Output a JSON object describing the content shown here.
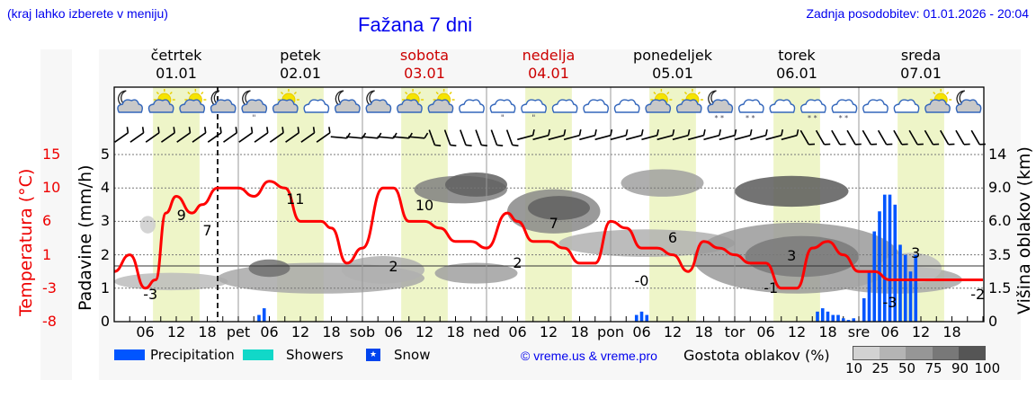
{
  "header": {
    "location_hint": "(kraj lahko izberete v meniju)",
    "title": "Fažana 7 dni",
    "last_update": "Zadnja posodobitev: 01.01.2026 - 20:04"
  },
  "days": [
    {
      "name": "četrtek",
      "date": "01.01",
      "weekend": false
    },
    {
      "name": "petek",
      "date": "02.01",
      "weekend": false
    },
    {
      "name": "sobota",
      "date": "03.01",
      "weekend": true
    },
    {
      "name": "nedelja",
      "date": "04.01",
      "weekend": true
    },
    {
      "name": "ponedeljek",
      "date": "05.01",
      "weekend": false
    },
    {
      "name": "torek",
      "date": "06.01",
      "weekend": false
    },
    {
      "name": "sreda",
      "date": "07.01",
      "weekend": false
    }
  ],
  "x_ticks": [
    "06",
    "12",
    "18",
    "pet",
    "06",
    "12",
    "18",
    "sob",
    "06",
    "12",
    "18",
    "ned",
    "06",
    "12",
    "18",
    "pon",
    "06",
    "12",
    "18",
    "tor",
    "06",
    "12",
    "18",
    "sre",
    "06",
    "12",
    "18"
  ],
  "axes": {
    "left_label": "Padavine (mm/h)",
    "left_ticks": [
      "5",
      "4",
      "3",
      "2",
      "1",
      "0"
    ],
    "temp_label": "Temperatura (°C)",
    "temp_ticks": [
      "15",
      "10",
      "6",
      "1",
      "-3",
      "-8"
    ],
    "right_label": "Višina oblakov (km)",
    "right_ticks": [
      "14",
      "9.0",
      "6.0",
      "3.5",
      "1.5",
      "0"
    ]
  },
  "weather_icons": [
    "moon-cloud",
    "sun-cloud",
    "sun-cloud",
    "moon-cloud",
    "moon-cloud-drizzle",
    "sun-cloud",
    "cloud",
    "moon-cloud",
    "moon-cloud",
    "sun-cloud",
    "sun-cloud",
    "cloud",
    "cloud-drizzle",
    "cloud-drizzle",
    "cloud",
    "cloud",
    "cloud",
    "sun-cloud",
    "sun-cloud",
    "moon-cloud-snow",
    "cloud-sleet",
    "cloud",
    "cloud-sleet",
    "cloud-snow",
    "cloud",
    "cloud",
    "sun-cloud",
    "moon-cloud"
  ],
  "legend": {
    "precipitation": "Precipitation",
    "showers": "Showers",
    "snow": "Snow",
    "credit": "© vreme.us & vreme.pro",
    "cloud_density_label": "Gostota oblakov (%)",
    "cloud_density_ticks": [
      "10",
      "25",
      "50",
      "75",
      "90",
      "100"
    ]
  },
  "colors": {
    "temperature": "#ff0000",
    "precipitation": "#0055ff",
    "showers": "#11d8c8",
    "snow": "#0044ee",
    "daylight": "#eef5c8",
    "link": "#0000ee",
    "weekend": "#cc0000"
  },
  "chart_data": {
    "type": "line",
    "title": "Fažana 7 dni",
    "xlabel": "",
    "ylabel": "Padavine (mm/h)",
    "ylim": [
      0,
      5
    ],
    "temp_ylim": [
      -8,
      15
    ],
    "x_unit": "hours since 01.01 00:00",
    "series": [
      {
        "name": "Temperatura (°C)",
        "x": [
          0,
          3,
          6,
          8,
          10,
          12,
          15,
          17,
          20,
          24,
          27,
          30,
          33,
          36,
          40,
          42,
          45,
          48,
          52,
          54,
          57,
          60,
          63,
          66,
          69,
          72,
          76,
          78,
          81,
          84,
          87,
          90,
          93,
          96,
          99,
          102,
          105,
          108,
          111,
          114,
          117,
          120,
          123,
          126,
          129,
          132,
          135,
          138,
          141,
          144,
          147,
          150,
          153,
          156,
          159,
          162,
          165,
          168
        ],
        "values": [
          -1,
          1,
          -3,
          -2,
          7,
          9,
          7,
          8,
          10,
          10,
          9,
          11,
          10,
          6,
          6,
          5,
          0,
          2,
          10,
          10,
          6,
          6,
          5,
          3,
          3,
          2,
          7,
          6,
          3,
          3,
          2,
          0,
          0,
          6,
          5,
          2,
          2,
          1,
          -1,
          3,
          2,
          1,
          0,
          0,
          -3,
          -3,
          2,
          3,
          1,
          -1,
          -1,
          -2,
          -2,
          -2,
          -2,
          -2,
          -2,
          -2
        ]
      },
      {
        "name": "Precipitation (mm/h)",
        "x": [
          28,
          29,
          101,
          102,
          103,
          136,
          137,
          138,
          139,
          140,
          141,
          142,
          143,
          145,
          146,
          147,
          148,
          149,
          150,
          151,
          152,
          153,
          154,
          155
        ],
        "values": [
          0.2,
          0.4,
          0.2,
          0.3,
          0.2,
          0.3,
          0.4,
          0.3,
          0.2,
          0.2,
          0.1,
          0.05,
          0.1,
          0.7,
          1.5,
          2.7,
          3.3,
          3.8,
          3.8,
          3.5,
          2.3,
          2.0,
          1.5,
          2.0
        ]
      }
    ],
    "temperature_labels": [
      {
        "x": 7,
        "value": "-3"
      },
      {
        "x": 13,
        "value": "9"
      },
      {
        "x": 18,
        "value": "7"
      },
      {
        "x": 35,
        "value": "11"
      },
      {
        "x": 54,
        "value": "2"
      },
      {
        "x": 60,
        "value": "10"
      },
      {
        "x": 78,
        "value": "2"
      },
      {
        "x": 85,
        "value": "7"
      },
      {
        "x": 102,
        "value": "-0"
      },
      {
        "x": 108,
        "value": "6"
      },
      {
        "x": 127,
        "value": "-1"
      },
      {
        "x": 131,
        "value": "3"
      },
      {
        "x": 150,
        "value": "-3"
      },
      {
        "x": 155,
        "value": "3"
      },
      {
        "x": 167,
        "value": "-2"
      }
    ],
    "cloud_density_scale": [
      10,
      25,
      50,
      75,
      90,
      100
    ],
    "legend_position": "bottom",
    "grid": true
  }
}
